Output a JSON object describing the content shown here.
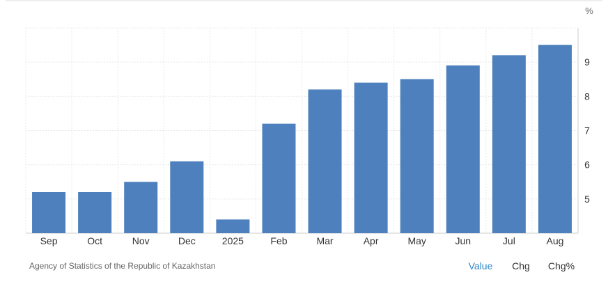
{
  "chart_data": {
    "type": "bar",
    "y_unit": "%",
    "categories": [
      "Sep",
      "Oct",
      "Nov",
      "Dec",
      "2025",
      "Feb",
      "Mar",
      "Apr",
      "May",
      "Jun",
      "Jul",
      "Aug"
    ],
    "values": [
      5.2,
      5.2,
      5.5,
      6.1,
      4.4,
      7.2,
      8.2,
      8.4,
      8.5,
      8.9,
      9.2,
      9.5
    ],
    "color": "#4d80bd",
    "ylim": [
      4,
      10
    ],
    "yticks": [
      5,
      6,
      7,
      8,
      9
    ],
    "grid": true,
    "source": "Agency of Statistics of the Republic of Kazakhstan",
    "buttons": [
      "Value",
      "Chg",
      "Chg%"
    ]
  }
}
